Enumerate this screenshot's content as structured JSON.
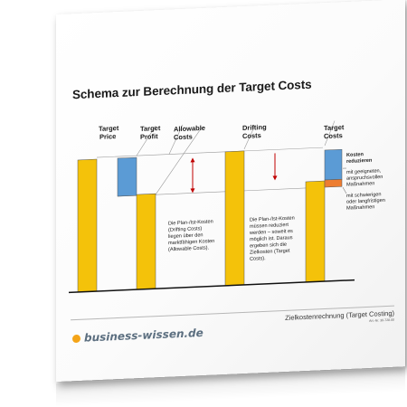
{
  "title": "Schema zur Berechnung der Target Costs",
  "diagram": {
    "labels": {
      "target_price": [
        "Target",
        "Price"
      ],
      "target_profit": [
        "Target",
        "Profit"
      ],
      "allowable_costs": [
        "Allowable",
        "Costs"
      ],
      "drifting_costs": [
        "Drifting",
        "Costs"
      ],
      "target_costs": [
        "Target",
        "Costs"
      ]
    },
    "note_allowable": [
      "Die Plan-/Ist-Kosten",
      "(Drifting Costs)",
      "liegen über den",
      "marktfähigen Kosten",
      "(Allowable Costs)."
    ],
    "note_drifting": [
      "Die Plan-/Ist-Kosten",
      "müssen reduziert",
      "werden – soweit es",
      "möglich ist. Daraus",
      "ergeben sich die",
      "Zielkosten (Target",
      "Costs)."
    ],
    "legend_title": [
      "Kosten",
      "reduzieren"
    ],
    "legend_blue": [
      "mit geeigneten,",
      "anspruchsvollen",
      "Maßnahmen"
    ],
    "legend_orange": [
      "mit schwierigen",
      "oder langfristigen",
      "Maßnahmen"
    ],
    "colors": {
      "bar_yellow": "#f4c20a",
      "bar_blue": "#5b9bd5",
      "bar_orange": "#ed7d31",
      "arrow_red": "#c00000"
    }
  },
  "footer": {
    "logo_text": "business-wissen.de",
    "doc_title": "Zielkostenrechnung (Target Costing)",
    "art_no": "Art.-Nr. 30-728.00"
  }
}
